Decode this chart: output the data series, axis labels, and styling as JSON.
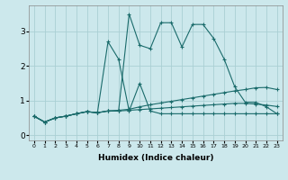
{
  "xlabel": "Humidex (Indice chaleur)",
  "background_color": "#cce8ec",
  "grid_color": "#aacfd4",
  "line_color": "#1a6b6b",
  "xlim": [
    -0.5,
    23.5
  ],
  "ylim": [
    -0.15,
    3.75
  ],
  "xticks": [
    0,
    1,
    2,
    3,
    4,
    5,
    6,
    7,
    8,
    9,
    10,
    11,
    12,
    13,
    14,
    15,
    16,
    17,
    18,
    19,
    20,
    21,
    22,
    23
  ],
  "yticks": [
    0,
    1,
    2,
    3
  ],
  "series": [
    [
      0.55,
      0.38,
      0.5,
      0.55,
      0.62,
      0.68,
      0.65,
      2.7,
      2.2,
      0.7,
      1.5,
      0.7,
      0.62,
      0.62,
      0.62,
      0.62,
      0.62,
      0.62,
      0.62,
      0.62,
      0.62,
      0.62,
      0.62,
      0.62
    ],
    [
      0.55,
      0.38,
      0.5,
      0.55,
      0.62,
      0.68,
      0.65,
      0.7,
      0.7,
      3.5,
      2.6,
      2.5,
      3.25,
      3.25,
      2.55,
      3.2,
      3.2,
      2.8,
      2.2,
      1.4,
      0.95,
      0.95,
      0.82,
      0.62
    ],
    [
      0.55,
      0.38,
      0.5,
      0.55,
      0.62,
      0.68,
      0.65,
      0.7,
      0.72,
      0.75,
      0.82,
      0.88,
      0.93,
      0.98,
      1.03,
      1.08,
      1.13,
      1.18,
      1.23,
      1.28,
      1.32,
      1.37,
      1.38,
      1.32
    ],
    [
      0.55,
      0.38,
      0.5,
      0.55,
      0.62,
      0.68,
      0.65,
      0.7,
      0.7,
      0.72,
      0.74,
      0.76,
      0.78,
      0.8,
      0.82,
      0.84,
      0.86,
      0.88,
      0.9,
      0.92,
      0.92,
      0.9,
      0.87,
      0.83
    ]
  ]
}
